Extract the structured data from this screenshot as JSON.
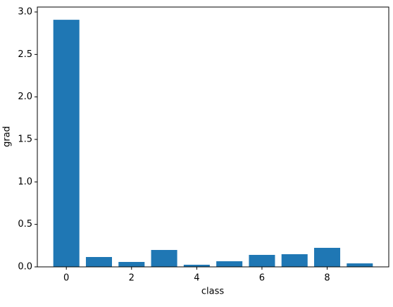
{
  "chart_data": {
    "type": "bar",
    "x": [
      0,
      1,
      2,
      3,
      4,
      5,
      6,
      7,
      8,
      9
    ],
    "values": [
      2.908,
      0.116,
      0.058,
      0.199,
      0.025,
      0.066,
      0.141,
      0.149,
      0.224,
      0.041
    ],
    "color": "#1f77b4",
    "xlabel": "class",
    "ylabel": "grad",
    "xlim": [
      -0.89,
      9.89
    ],
    "xticks": [
      0,
      2,
      4,
      6,
      8
    ],
    "ylim": [
      0,
      3.058
    ],
    "yticks": [
      {
        "value": 0,
        "label": "0.0"
      },
      {
        "value": 0.5,
        "label": "0.5"
      },
      {
        "value": 1,
        "label": "1.0"
      },
      {
        "value": 1.5,
        "label": "1.5"
      },
      {
        "value": 2,
        "label": "2.0"
      },
      {
        "value": 2.5,
        "label": "2.5"
      },
      {
        "value": 3,
        "label": "3.0"
      }
    ]
  }
}
